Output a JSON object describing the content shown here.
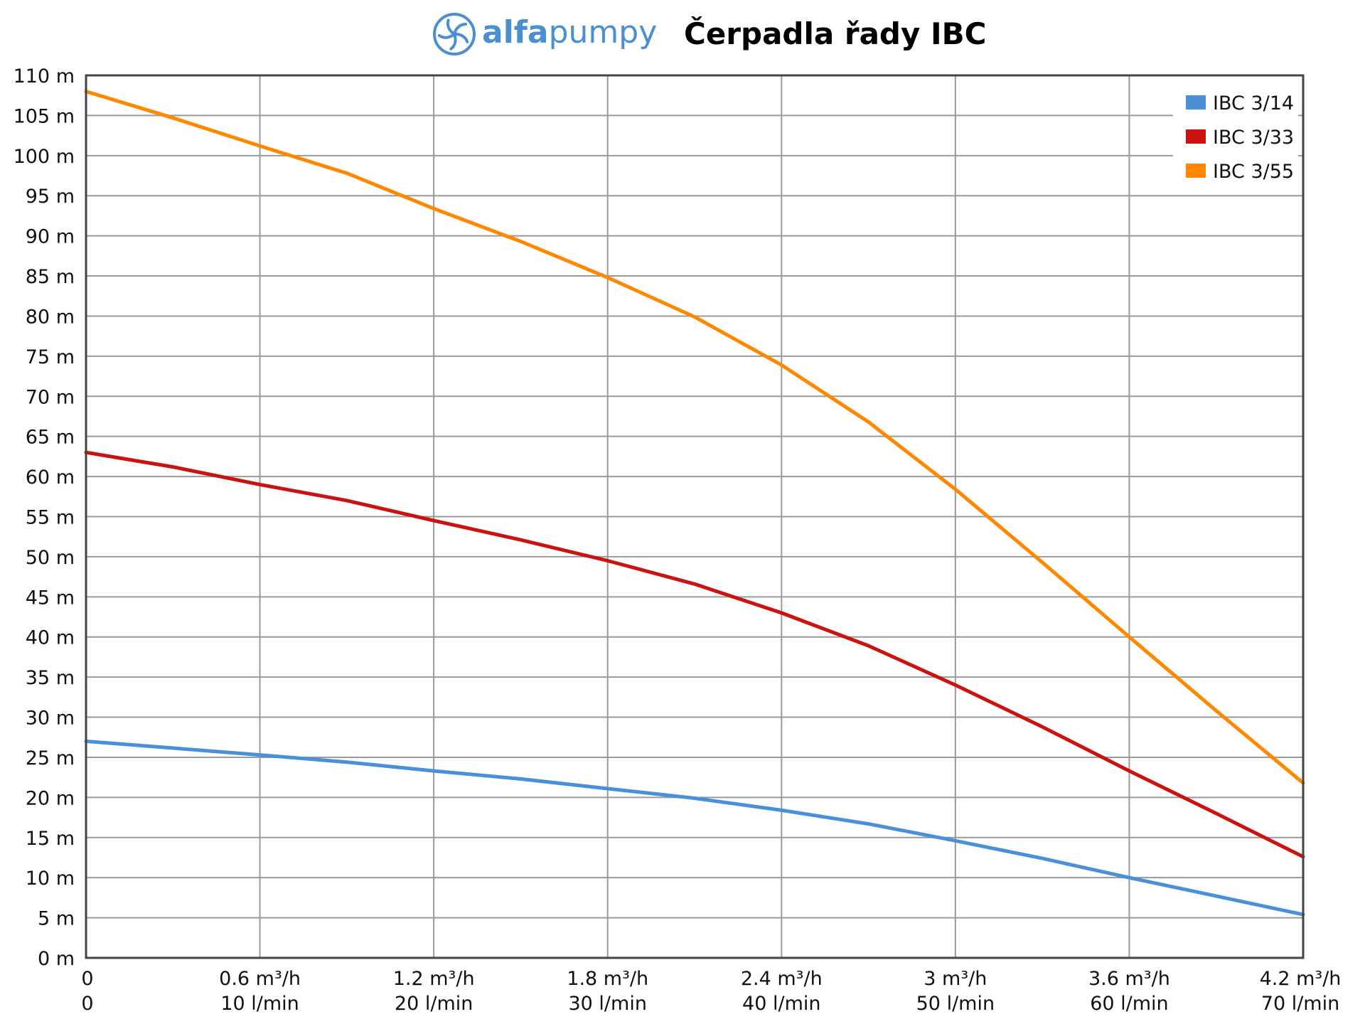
{
  "brand": {
    "name_part1": "alfa",
    "name_part2": "pumpy",
    "color": "#4a90d0"
  },
  "page_title": "Čerpadla řady IBC",
  "chart_data": {
    "type": "line",
    "title": "Čerpadla řady IBC",
    "xlabel": "",
    "ylabel": "",
    "x": [
      0,
      0.6,
      1.2,
      1.8,
      2.4,
      3.0,
      3.6,
      4.2
    ],
    "x_unit": "m³/h",
    "xlim": [
      0,
      4.2
    ],
    "ylim": [
      0,
      110
    ],
    "y_ticks": [
      "0 m",
      "5 m",
      "10 m",
      "15 m",
      "20 m",
      "25 m",
      "30 m",
      "35 m",
      "40 m",
      "45 m",
      "50 m",
      "55 m",
      "60 m",
      "65 m",
      "70 m",
      "75 m",
      "80 m",
      "85 m",
      "90 m",
      "95 m",
      "100 m",
      "105 m",
      "110 m"
    ],
    "x_ticks_primary": [
      "0",
      "0.6 m³/h",
      "1.2 m³/h",
      "1.8 m³/h",
      "2.4 m³/h",
      "3 m³/h",
      "3.6 m³/h",
      "4.2 m³/h"
    ],
    "x_ticks_secondary": [
      "0",
      "10 l/min",
      "20 l/min",
      "30 l/min",
      "40 l/min",
      "50 l/min",
      "60 l/min",
      "70 l/min"
    ],
    "grid": true,
    "legend_position": "top-right",
    "series": [
      {
        "name": "IBC 3/14",
        "color": "#4a90d9",
        "x": [
          0,
          0.6,
          0.9,
          1.2,
          1.5,
          1.8,
          2.1,
          2.4,
          2.7,
          3.0,
          3.3,
          3.6,
          3.9,
          4.2
        ],
        "values": [
          27,
          25.3,
          24.4,
          23.3,
          22.3,
          21.1,
          19.9,
          18.4,
          16.7,
          14.6,
          12.4,
          10.0,
          7.7,
          5.4
        ]
      },
      {
        "name": "IBC 3/33",
        "color": "#cc1111",
        "x": [
          0,
          0.3,
          0.6,
          0.9,
          1.2,
          1.5,
          1.8,
          2.1,
          2.4,
          2.7,
          3.0,
          3.3,
          3.6,
          3.9,
          4.2
        ],
        "values": [
          63,
          61.2,
          59.0,
          57.0,
          54.5,
          52.1,
          49.5,
          46.6,
          43.0,
          38.9,
          34.0,
          28.8,
          23.3,
          18.0,
          12.6
        ]
      },
      {
        "name": "IBC 3/55",
        "color": "#ff8800",
        "x": [
          0,
          0.3,
          0.6,
          0.9,
          1.2,
          1.5,
          1.8,
          2.1,
          2.4,
          2.7,
          3.0,
          3.3,
          3.6,
          3.9,
          4.2
        ],
        "values": [
          108,
          104.7,
          101.2,
          97.8,
          93.4,
          89.3,
          84.8,
          79.9,
          73.9,
          66.8,
          58.4,
          49.3,
          40.0,
          30.8,
          21.8
        ]
      }
    ]
  }
}
